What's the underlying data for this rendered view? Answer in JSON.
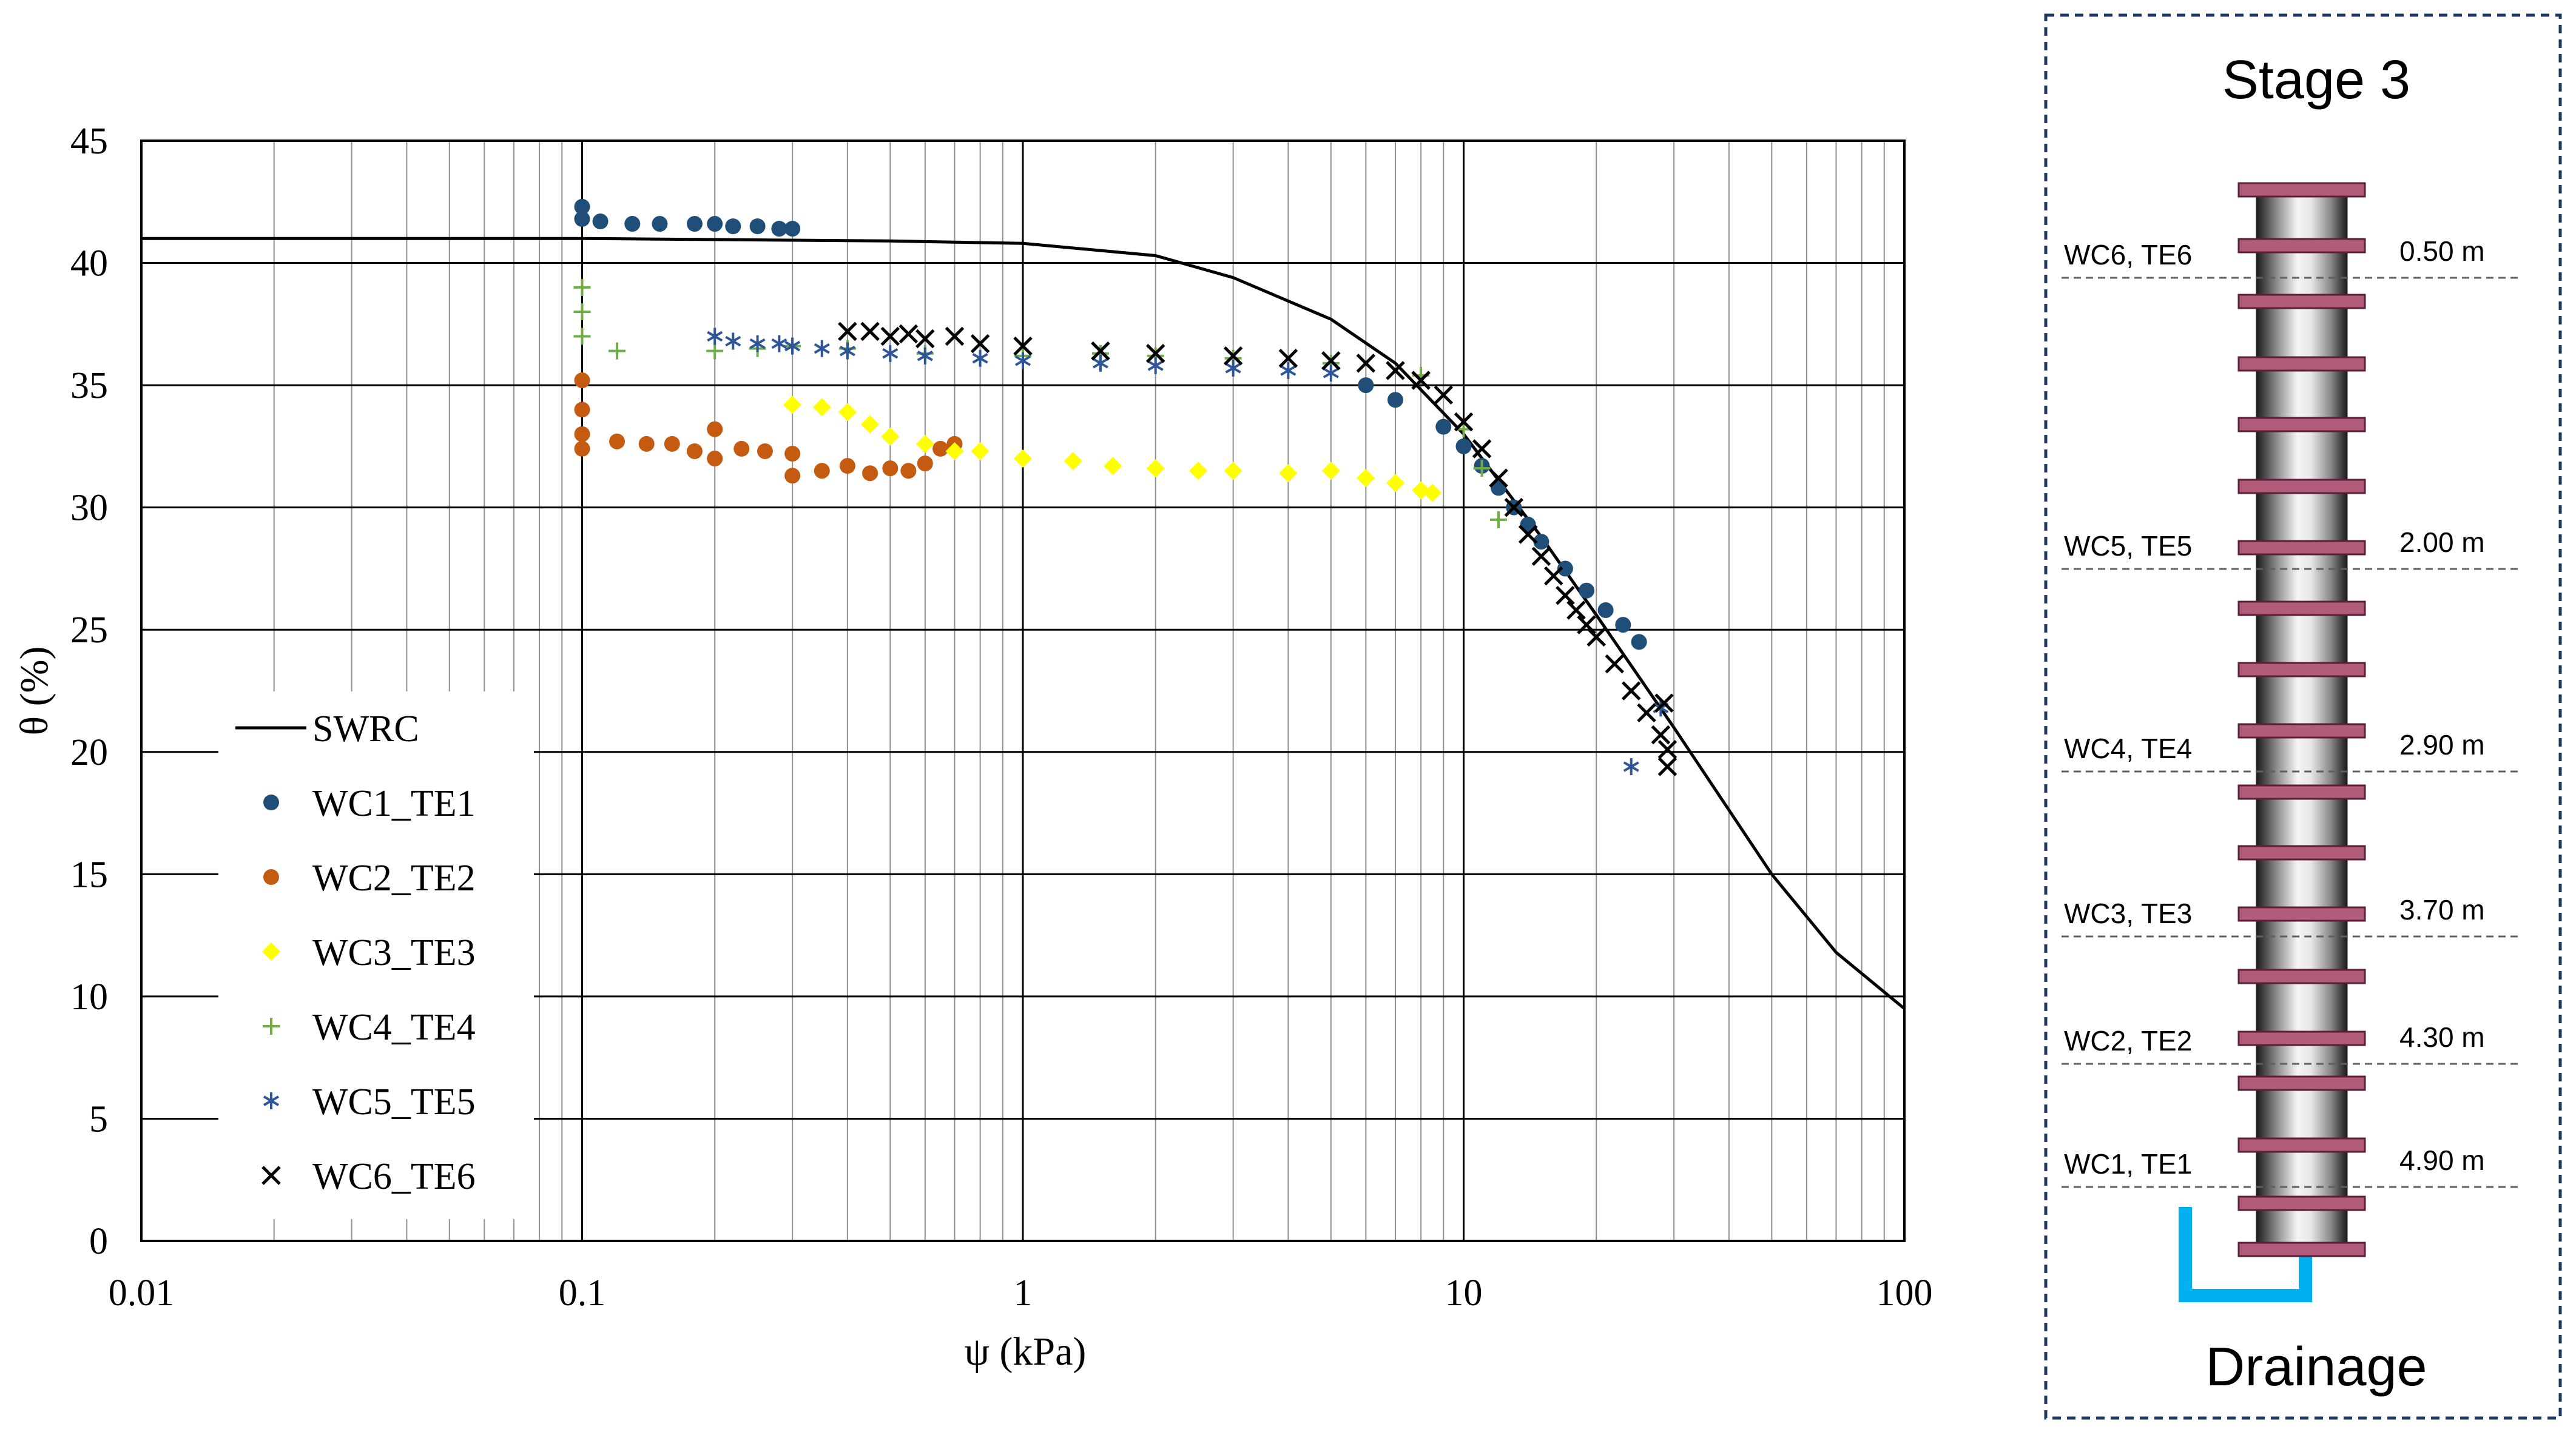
{
  "chart_data": {
    "type": "scatter",
    "x_scale": "log",
    "xlim": [
      0.01,
      100
    ],
    "ylim": [
      0,
      45
    ],
    "xlabel": "ψ (kPa)",
    "ylabel": "θ (%)",
    "x_ticks": [
      "0.01",
      "0.1",
      "1",
      "10",
      "100"
    ],
    "y_ticks": [
      "0",
      "5",
      "10",
      "15",
      "20",
      "25",
      "30",
      "35",
      "40",
      "45"
    ],
    "grid": true,
    "legend_position": "bottom-left",
    "series": [
      {
        "name": "SWRC",
        "marker": "line",
        "color": "#000000",
        "points": [
          [
            0.01,
            41.0
          ],
          [
            0.1,
            41.0
          ],
          [
            0.5,
            40.9
          ],
          [
            1,
            40.8
          ],
          [
            2,
            40.3
          ],
          [
            3,
            39.4
          ],
          [
            5,
            37.7
          ],
          [
            7,
            35.9
          ],
          [
            10,
            33.0
          ],
          [
            15,
            28.8
          ],
          [
            20,
            25.6
          ],
          [
            30,
            21.0
          ],
          [
            50,
            15.0
          ],
          [
            70,
            11.8
          ],
          [
            100,
            9.5
          ]
        ]
      },
      {
        "name": "WC1_TE1",
        "marker": "dot",
        "color": "#1f4e79",
        "points": [
          [
            0.1,
            42.3
          ],
          [
            0.1,
            41.8
          ],
          [
            0.11,
            41.7
          ],
          [
            0.13,
            41.6
          ],
          [
            0.15,
            41.6
          ],
          [
            0.18,
            41.6
          ],
          [
            0.2,
            41.6
          ],
          [
            0.22,
            41.5
          ],
          [
            0.25,
            41.5
          ],
          [
            0.28,
            41.4
          ],
          [
            0.3,
            41.4
          ],
          [
            6,
            35.0
          ],
          [
            7,
            34.4
          ],
          [
            9,
            33.3
          ],
          [
            10,
            32.5
          ],
          [
            11,
            31.7
          ],
          [
            12,
            30.8
          ],
          [
            13,
            30.0
          ],
          [
            14,
            29.3
          ],
          [
            15,
            28.6
          ],
          [
            17,
            27.5
          ],
          [
            19,
            26.6
          ],
          [
            21,
            25.8
          ],
          [
            23,
            25.2
          ],
          [
            25,
            24.5
          ]
        ]
      },
      {
        "name": "WC2_TE2",
        "marker": "dot",
        "color": "#c55a11",
        "points": [
          [
            0.1,
            35.2
          ],
          [
            0.1,
            34.0
          ],
          [
            0.1,
            33.0
          ],
          [
            0.1,
            32.4
          ],
          [
            0.12,
            32.7
          ],
          [
            0.14,
            32.6
          ],
          [
            0.16,
            32.6
          ],
          [
            0.18,
            32.3
          ],
          [
            0.2,
            33.2
          ],
          [
            0.2,
            32.0
          ],
          [
            0.23,
            32.4
          ],
          [
            0.26,
            32.3
          ],
          [
            0.3,
            32.2
          ],
          [
            0.3,
            31.3
          ],
          [
            0.35,
            31.5
          ],
          [
            0.4,
            31.7
          ],
          [
            0.45,
            31.4
          ],
          [
            0.5,
            31.6
          ],
          [
            0.55,
            31.5
          ],
          [
            0.6,
            31.8
          ],
          [
            0.65,
            32.4
          ],
          [
            0.7,
            32.6
          ]
        ]
      },
      {
        "name": "WC3_TE3",
        "marker": "diamond",
        "color": "#ffff00",
        "points": [
          [
            0.3,
            34.2
          ],
          [
            0.35,
            34.1
          ],
          [
            0.4,
            33.9
          ],
          [
            0.45,
            33.4
          ],
          [
            0.5,
            32.9
          ],
          [
            0.6,
            32.6
          ],
          [
            0.7,
            32.3
          ],
          [
            0.8,
            32.3
          ],
          [
            1,
            32.0
          ],
          [
            1.3,
            31.9
          ],
          [
            1.6,
            31.7
          ],
          [
            2,
            31.6
          ],
          [
            2.5,
            31.5
          ],
          [
            3,
            31.5
          ],
          [
            4,
            31.4
          ],
          [
            5,
            31.5
          ],
          [
            6,
            31.2
          ],
          [
            7,
            31.0
          ],
          [
            8,
            30.7
          ],
          [
            8.5,
            30.6
          ]
        ]
      },
      {
        "name": "WC4_TE4",
        "marker": "plus",
        "color": "#70ad47",
        "points": [
          [
            0.1,
            39.0
          ],
          [
            0.1,
            38.0
          ],
          [
            0.1,
            37.0
          ],
          [
            0.12,
            36.4
          ],
          [
            0.2,
            36.4
          ],
          [
            0.25,
            36.5
          ],
          [
            0.3,
            36.6
          ],
          [
            0.4,
            36.5
          ],
          [
            0.6,
            36.3
          ],
          [
            1,
            36.2
          ],
          [
            1.5,
            36.3
          ],
          [
            2,
            36.2
          ],
          [
            3,
            36.1
          ],
          [
            5,
            35.9
          ],
          [
            8,
            35.4
          ],
          [
            10,
            33.2
          ],
          [
            11,
            31.6
          ],
          [
            12,
            29.5
          ]
        ]
      },
      {
        "name": "WC5_TE5",
        "marker": "star",
        "color": "#2e5597",
        "points": [
          [
            0.2,
            37.0
          ],
          [
            0.22,
            36.8
          ],
          [
            0.25,
            36.7
          ],
          [
            0.28,
            36.7
          ],
          [
            0.3,
            36.6
          ],
          [
            0.35,
            36.5
          ],
          [
            0.4,
            36.4
          ],
          [
            0.5,
            36.3
          ],
          [
            0.6,
            36.2
          ],
          [
            0.8,
            36.1
          ],
          [
            1,
            36.0
          ],
          [
            1.5,
            35.9
          ],
          [
            2,
            35.8
          ],
          [
            3,
            35.7
          ],
          [
            4,
            35.6
          ],
          [
            5,
            35.5
          ],
          [
            24,
            19.4
          ],
          [
            28,
            21.8
          ]
        ]
      },
      {
        "name": "WC6_TE6",
        "marker": "x",
        "color": "#000000",
        "points": [
          [
            0.4,
            37.2
          ],
          [
            0.45,
            37.2
          ],
          [
            0.5,
            37.0
          ],
          [
            0.55,
            37.1
          ],
          [
            0.6,
            36.9
          ],
          [
            0.7,
            37.0
          ],
          [
            0.8,
            36.7
          ],
          [
            1,
            36.6
          ],
          [
            1.5,
            36.4
          ],
          [
            2,
            36.3
          ],
          [
            3,
            36.2
          ],
          [
            4,
            36.1
          ],
          [
            5,
            36.0
          ],
          [
            6,
            35.9
          ],
          [
            7,
            35.6
          ],
          [
            8,
            35.2
          ],
          [
            9,
            34.6
          ],
          [
            10,
            33.5
          ],
          [
            11,
            32.4
          ],
          [
            12,
            31.2
          ],
          [
            13,
            30.0
          ],
          [
            14,
            28.9
          ],
          [
            15,
            28.0
          ],
          [
            16,
            27.2
          ],
          [
            17,
            26.4
          ],
          [
            18,
            25.8
          ],
          [
            19,
            25.2
          ],
          [
            20,
            24.7
          ],
          [
            22,
            23.6
          ],
          [
            24,
            22.5
          ],
          [
            26,
            21.6
          ],
          [
            28,
            20.7
          ],
          [
            29,
            20.1
          ],
          [
            29,
            19.4
          ],
          [
            28.5,
            22.0
          ]
        ]
      }
    ]
  },
  "diagram": {
    "title": "Stage 3",
    "footer": "Drainage",
    "sensors": [
      {
        "label": "WC6, TE6",
        "depth": "0.50 m"
      },
      {
        "label": "WC5, TE5",
        "depth": "2.00 m"
      },
      {
        "label": "WC4, TE4",
        "depth": "2.90 m"
      },
      {
        "label": "WC3, TE3",
        "depth": "3.70 m"
      },
      {
        "label": "WC2, TE2",
        "depth": "4.30 m"
      },
      {
        "label": "WC1, TE1",
        "depth": "4.90 m"
      }
    ]
  }
}
